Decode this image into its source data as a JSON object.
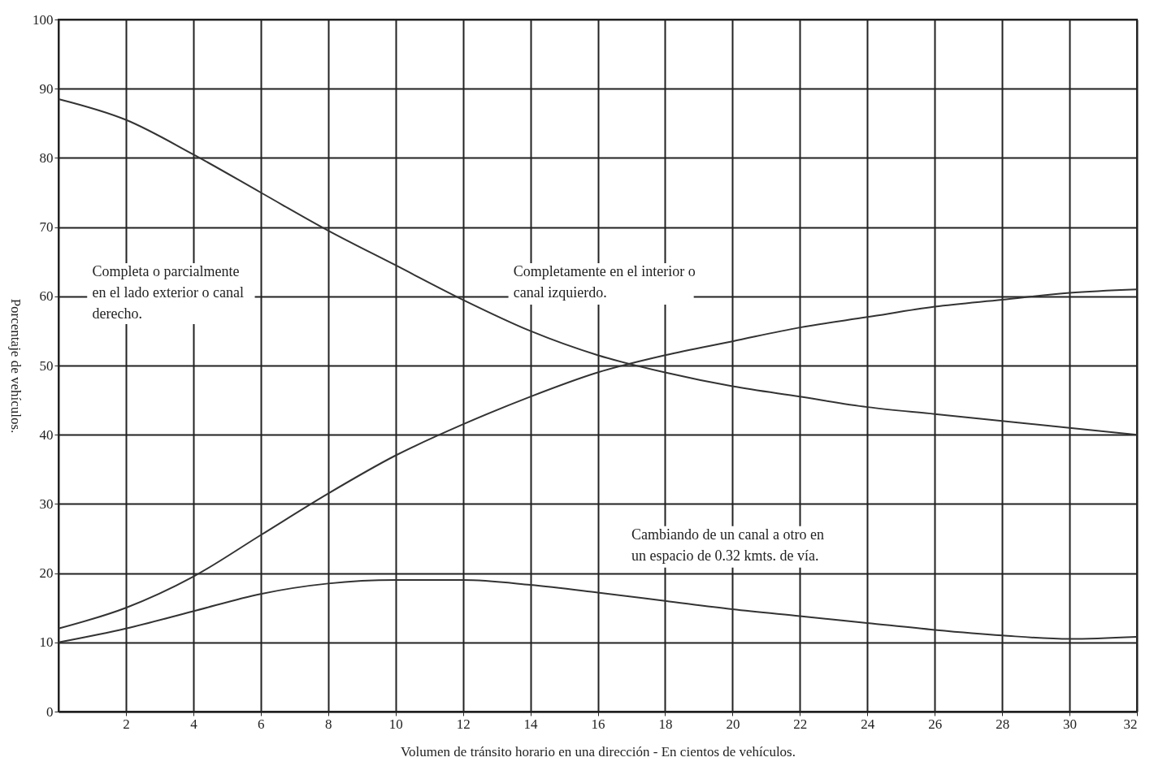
{
  "chart_data": {
    "type": "line",
    "xlabel": "Volumen de tránsito horario en una dirección - En cientos de vehículos.",
    "ylabel": "Porcentaje de vehículos.",
    "x": [
      0,
      2,
      4,
      6,
      8,
      10,
      12,
      14,
      16,
      18,
      20,
      22,
      24,
      26,
      28,
      30,
      32
    ],
    "series": [
      {
        "color": "#333333",
        "values": [
          88.5,
          85.5,
          80.5,
          75,
          69.5,
          64.5,
          59.5,
          55,
          51.5,
          49,
          47,
          45.5,
          44,
          43,
          42,
          41,
          40
        ]
      },
      {
        "color": "#333333",
        "values": [
          12,
          15,
          19.5,
          25.5,
          31.5,
          37,
          41.5,
          45.5,
          49,
          51.5,
          53.5,
          55.5,
          57,
          58.5,
          59.5,
          60.5,
          61
        ]
      },
      {
        "color": "#333333",
        "values": [
          10,
          12,
          14.5,
          17,
          18.5,
          19,
          19,
          18.3,
          17.2,
          16,
          14.8,
          13.8,
          12.8,
          11.8,
          11,
          10.5,
          10.8
        ]
      }
    ],
    "annotations": [
      "Completa o parcialmente\nen el lado exterior o canal\nderecho.",
      "Completamente en el interior o\ncanal izquierdo.",
      "Cambiando de un canal a otro en\nun espacio de 0.32 kmts. de vía."
    ],
    "xlim": [
      0,
      32
    ],
    "xticks": [
      2,
      4,
      6,
      8,
      10,
      12,
      14,
      16,
      18,
      20,
      22,
      24,
      26,
      28,
      30,
      32
    ],
    "ylim": [
      0,
      100
    ],
    "yticks": [
      0,
      10,
      20,
      30,
      40,
      50,
      60,
      70,
      80,
      90,
      100
    ],
    "grid": true,
    "legend": false,
    "marker": "none",
    "line_style": "solid"
  }
}
